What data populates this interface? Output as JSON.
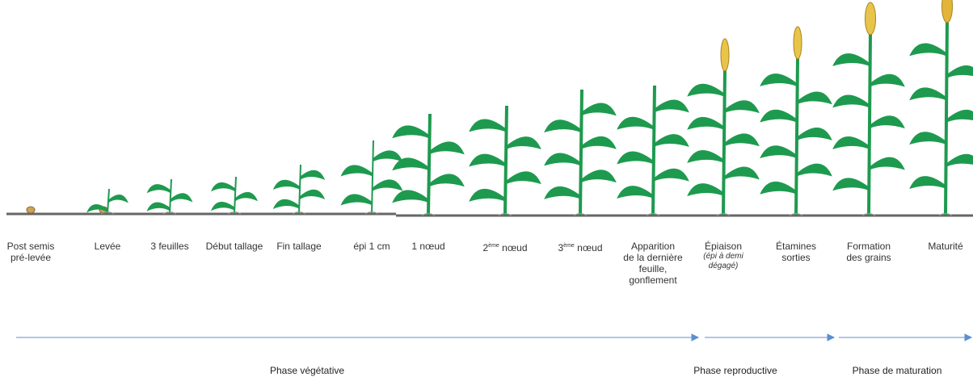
{
  "stages": [
    {
      "lines": [
        "Post semis",
        "pré-levée"
      ]
    },
    {
      "lines": [
        "Levée"
      ]
    },
    {
      "lines": [
        "3 feuilles"
      ]
    },
    {
      "lines": [
        "Début tallage"
      ]
    },
    {
      "lines": [
        "Fin tallage"
      ]
    },
    {
      "lines": [
        "épi 1 cm"
      ]
    },
    {
      "lines": [
        "1 nœud"
      ]
    },
    {
      "ordinal": "2",
      "sup": "ème",
      "word": "nœud"
    },
    {
      "ordinal": "3",
      "sup": "ème",
      "word": "nœud"
    },
    {
      "lines": [
        "Apparition",
        "de la dernière",
        "feuille,",
        "gonflement"
      ]
    },
    {
      "lines": [
        "Épiaison"
      ],
      "note": [
        "(épi à demi",
        "dégagé)"
      ]
    },
    {
      "lines": [
        "Étamines",
        "sorties"
      ]
    },
    {
      "lines": [
        "Formation",
        "des grains"
      ]
    },
    {
      "lines": [
        "Maturité"
      ]
    }
  ],
  "phases": [
    "Phase végétative",
    "Phase reproductive",
    "Phase de maturation"
  ]
}
